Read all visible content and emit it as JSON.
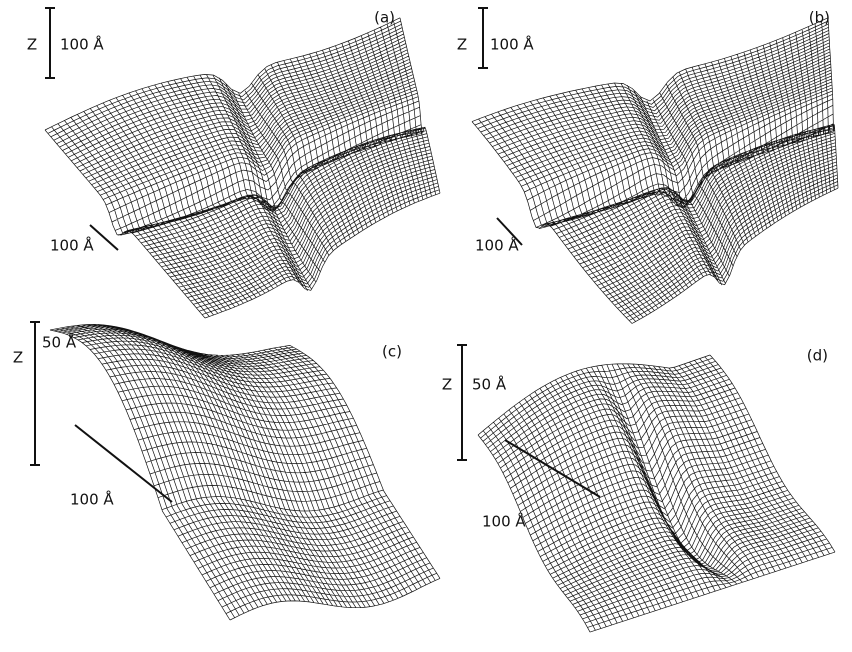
{
  "panels": [
    {
      "label": "(a)",
      "z_label": "Z",
      "z_scale": "100 Å",
      "xy_scale": "100 Å"
    },
    {
      "label": "(b)",
      "z_label": "Z",
      "z_scale": "100 Å",
      "xy_scale": "100 Å"
    },
    {
      "label": "(c)",
      "z_label": "Z",
      "z_scale": "50 Å",
      "xy_scale": "100 Å"
    },
    {
      "label": "(d)",
      "z_label": "Z",
      "z_scale": "50 Å",
      "xy_scale": "100 Å"
    }
  ]
}
